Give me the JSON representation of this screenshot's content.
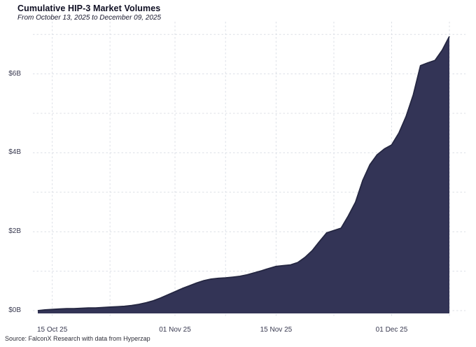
{
  "header": {
    "title": "Cumulative HIP-3 Market Volumes",
    "subtitle": "From October 13, 2025 to December 09, 2025"
  },
  "footer": {
    "source": "Source: FalconX Research with data from Hyperzap"
  },
  "colors": {
    "background": "#ffffff",
    "area_fill": "#333456",
    "area_edge": "#252742",
    "gridline": "#dcdfe6",
    "tick_text": "#393a50",
    "title_text": "#0f0f23"
  },
  "chart_data": {
    "type": "area",
    "title": "Cumulative HIP-3 Market Volumes",
    "subtitle": "From October 13, 2025 to December 09, 2025",
    "xlabel": "",
    "ylabel": "",
    "ylim": [
      0,
      7.1
    ],
    "grid": "dashed",
    "legend": "none",
    "units": "USD billions, cumulative",
    "x": [
      "2025-10-13",
      "2025-10-14",
      "2025-10-15",
      "2025-10-16",
      "2025-10-17",
      "2025-10-18",
      "2025-10-19",
      "2025-10-20",
      "2025-10-21",
      "2025-10-22",
      "2025-10-23",
      "2025-10-24",
      "2025-10-25",
      "2025-10-26",
      "2025-10-27",
      "2025-10-28",
      "2025-10-29",
      "2025-10-30",
      "2025-10-31",
      "2025-11-01",
      "2025-11-02",
      "2025-11-03",
      "2025-11-04",
      "2025-11-05",
      "2025-11-06",
      "2025-11-07",
      "2025-11-08",
      "2025-11-09",
      "2025-11-10",
      "2025-11-11",
      "2025-11-12",
      "2025-11-13",
      "2025-11-14",
      "2025-11-15",
      "2025-11-16",
      "2025-11-17",
      "2025-11-18",
      "2025-11-19",
      "2025-11-20",
      "2025-11-21",
      "2025-11-22",
      "2025-11-23",
      "2025-11-24",
      "2025-11-25",
      "2025-11-26",
      "2025-11-27",
      "2025-11-28",
      "2025-11-29",
      "2025-11-30",
      "2025-12-01",
      "2025-12-02",
      "2025-12-03",
      "2025-12-04",
      "2025-12-05",
      "2025-12-06",
      "2025-12-07",
      "2025-12-08",
      "2025-12-09"
    ],
    "values": [
      0.0,
      0.02,
      0.03,
      0.04,
      0.05,
      0.05,
      0.06,
      0.07,
      0.07,
      0.08,
      0.09,
      0.1,
      0.11,
      0.13,
      0.16,
      0.2,
      0.25,
      0.32,
      0.4,
      0.48,
      0.56,
      0.63,
      0.7,
      0.76,
      0.8,
      0.82,
      0.83,
      0.85,
      0.87,
      0.91,
      0.96,
      1.01,
      1.07,
      1.12,
      1.14,
      1.16,
      1.22,
      1.35,
      1.52,
      1.75,
      1.97,
      2.03,
      2.09,
      2.4,
      2.75,
      3.3,
      3.7,
      3.95,
      4.1,
      4.2,
      4.5,
      4.92,
      5.47,
      6.21,
      6.28,
      6.34,
      6.6,
      6.95
    ],
    "y_ticks": [
      {
        "value": 0,
        "label": "$0B"
      },
      {
        "value": 2,
        "label": "$2B"
      },
      {
        "value": 4,
        "label": "$4B"
      },
      {
        "value": 6,
        "label": "$6B"
      }
    ],
    "y_gridline_values": [
      0,
      1,
      2,
      3,
      4,
      5,
      6,
      7
    ],
    "x_ticks": [
      {
        "index": 2,
        "label": "15 Oct 25"
      },
      {
        "index": 19,
        "label": "01 Nov 25"
      },
      {
        "index": 33,
        "label": "15 Nov 25"
      },
      {
        "index": 49,
        "label": "01 Dec 25"
      }
    ],
    "x_minor_gridline_indices": [
      10,
      26,
      41,
      57
    ]
  }
}
